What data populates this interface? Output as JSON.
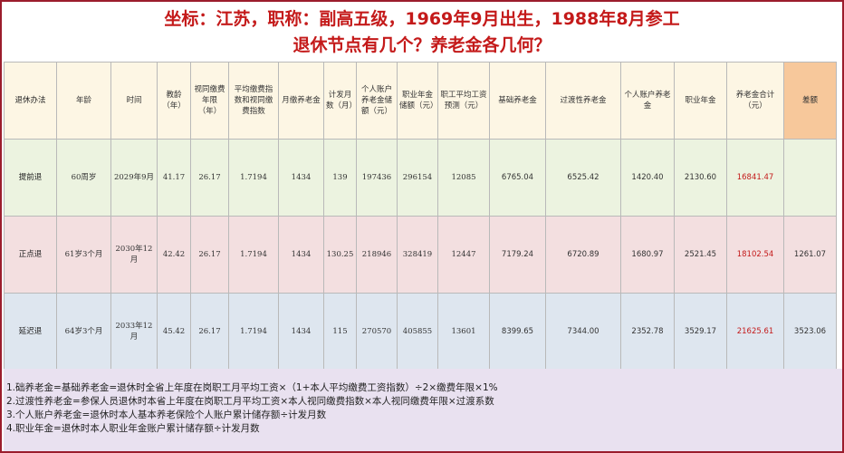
{
  "title": {
    "line1": "坐标：江苏，职称：副高五级，1969年9月出生，1988年8月参工",
    "line2": "退休节点有几个？养老金各几何？"
  },
  "table": {
    "headers": [
      "退休办法",
      "年龄",
      "时间",
      "教龄（年）",
      "视同缴费年限（年）",
      "平均缴费指数和视同缴费指数",
      "月缴养老金",
      "计发月数（月）",
      "个人账户养老金储额（元）",
      "职业年金储额（元）",
      "职工平均工资预测（元）",
      "基础养老金",
      "过渡性养老金",
      "个人账户养老金",
      "职业年金",
      "养老金合计（元）",
      "差额"
    ],
    "rows": [
      {
        "method": "提前退",
        "age": "60周岁",
        "time": "2029年9月",
        "teach_years": "41.17",
        "deemed_years": "26.17",
        "index": "1.7194",
        "monthly_contrib": "1434",
        "months": "139",
        "personal_balance": "197436",
        "annuity_balance": "296154",
        "avg_wage": "12085",
        "basic": "6765.04",
        "transitional": "6525.42",
        "personal": "1420.40",
        "annuity": "2130.60",
        "total": "16841.47",
        "diff": ""
      },
      {
        "method": "正点退",
        "age": "61岁3个月",
        "time": "2030年12月",
        "teach_years": "42.42",
        "deemed_years": "26.17",
        "index": "1.7194",
        "monthly_contrib": "1434",
        "months": "130.25",
        "personal_balance": "218946",
        "annuity_balance": "328419",
        "avg_wage": "12447",
        "basic": "7179.24",
        "transitional": "6720.89",
        "personal": "1680.97",
        "annuity": "2521.45",
        "total": "18102.54",
        "diff": "1261.07"
      },
      {
        "method": "延迟退",
        "age": "64岁3个月",
        "time": "2033年12月",
        "teach_years": "45.42",
        "deemed_years": "26.17",
        "index": "1.7194",
        "monthly_contrib": "1434",
        "months": "115",
        "personal_balance": "270570",
        "annuity_balance": "405855",
        "avg_wage": "13601",
        "basic": "8399.65",
        "transitional": "7344.00",
        "personal": "2352.78",
        "annuity": "3529.17",
        "total": "21625.61",
        "diff": "3523.06"
      }
    ]
  },
  "notes": [
    "1.础养老金=基础养老金=退休时全省上年度在岗职工月平均工资×（1+本人平均缴费工资指数）÷2×缴费年限×1%",
    "2.过渡性养老金=参保人员退休时本省上年度在岗职工月平均工资×本人视同缴费指数×本人视同缴费年限×过渡系数",
    "3.个人账户养老金=退休时本人基本养老保险个人账户累计储存额÷计发月数",
    "4.职业年金=退休时本人职业年金账户累计储存额÷计发月数"
  ],
  "colors": {
    "title": "#c41a1a",
    "total_value": "#c41a1a",
    "header_bg": "#fdf6e4",
    "diff_header_bg": "#f7c89b",
    "row1_bg": "#ecf3e0",
    "row2_bg": "#f3dfe0",
    "row3_bg": "#dee6ef",
    "notes_bg": "#e9e1f0"
  }
}
